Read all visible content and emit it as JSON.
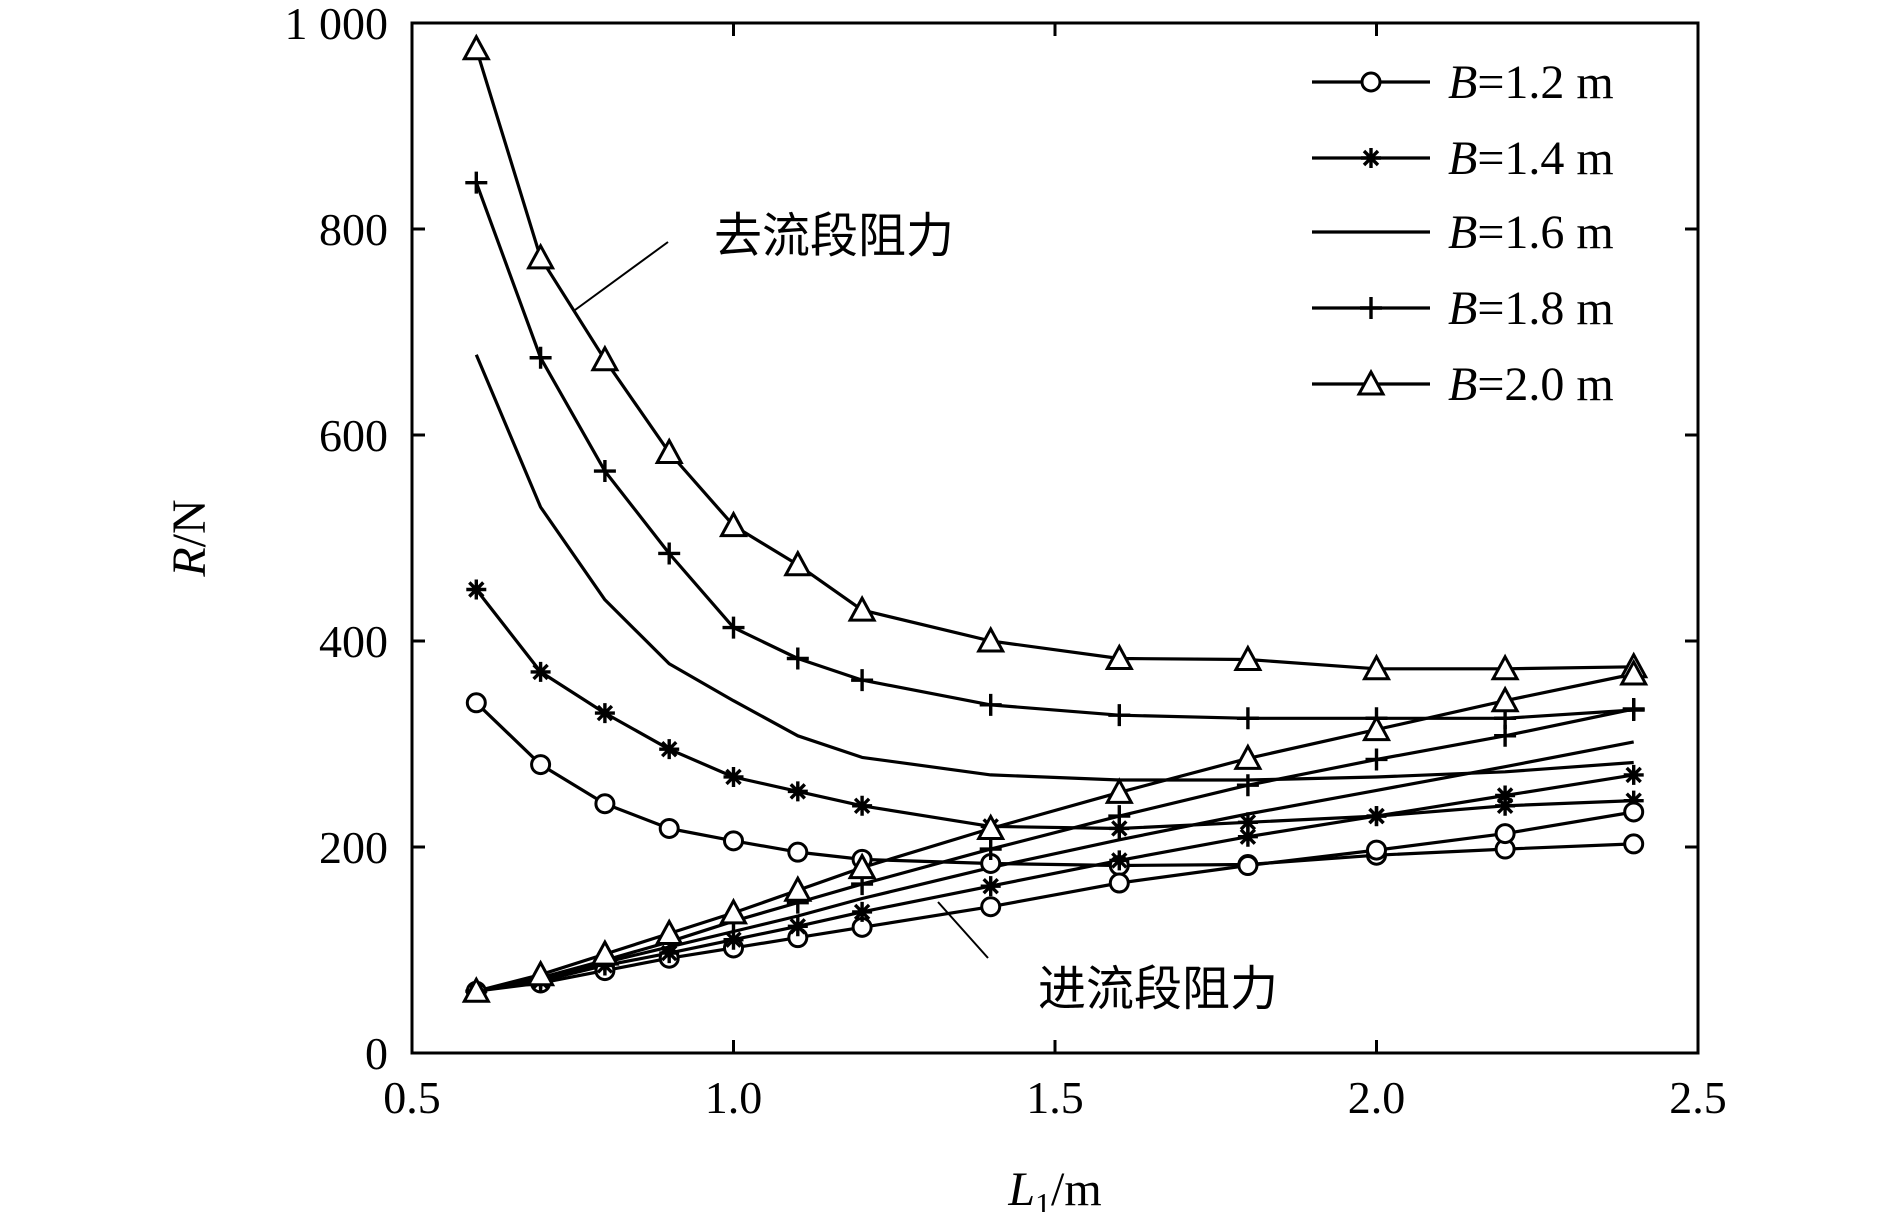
{
  "chart_data": {
    "type": "line",
    "xlabel": {
      "main": "L",
      "sub": "1",
      "unit": "/m"
    },
    "ylabel": {
      "main": "R",
      "unit": "/N"
    },
    "xlim": [
      0.5,
      2.5
    ],
    "ylim": [
      0,
      1000
    ],
    "xticks": [
      {
        "value": 0.5,
        "label": "0.5"
      },
      {
        "value": 1.0,
        "label": "1.0"
      },
      {
        "value": 1.5,
        "label": "1.5"
      },
      {
        "value": 2.0,
        "label": "2.0"
      },
      {
        "value": 2.5,
        "label": "2.5"
      }
    ],
    "yticks": [
      {
        "value": 0,
        "label": "0"
      },
      {
        "value": 200,
        "label": "200"
      },
      {
        "value": 400,
        "label": "400"
      },
      {
        "value": 600,
        "label": "600"
      },
      {
        "value": 800,
        "label": "800"
      },
      {
        "value": 1000,
        "label": "1 000"
      }
    ],
    "grid": false,
    "legend_position": "top-right",
    "legend": [
      {
        "label_italic": "B",
        "label_rest": "=1.2 m",
        "marker": "circle"
      },
      {
        "label_italic": "B",
        "label_rest": "=1.4 m",
        "marker": "star"
      },
      {
        "label_italic": "B",
        "label_rest": "=1.6 m",
        "marker": "none"
      },
      {
        "label_italic": "B",
        "label_rest": "=1.8 m",
        "marker": "plus"
      },
      {
        "label_italic": "B",
        "label_rest": "=2.0 m",
        "marker": "triangle"
      }
    ],
    "annotations": [
      {
        "text": "去流段阻力",
        "position": "upper-middle",
        "points_to": "outflow curves"
      },
      {
        "text": "进流段阻力",
        "position": "lower-middle",
        "points_to": "inflow curves"
      }
    ],
    "x": [
      0.6,
      0.7,
      0.8,
      0.9,
      1.0,
      1.1,
      1.2,
      1.4,
      1.6,
      1.8,
      2.0,
      2.2,
      2.4
    ],
    "series": [
      {
        "name": "B=1.2 m outflow (去流段阻力)",
        "marker": "circle",
        "values": [
          340,
          280,
          242,
          218,
          206,
          195,
          188,
          184,
          182,
          183,
          192,
          198,
          203
        ]
      },
      {
        "name": "B=1.4 m outflow (去流段阻力)",
        "marker": "star",
        "values": [
          450,
          370,
          330,
          295,
          268,
          254,
          240,
          220,
          218,
          224,
          230,
          240,
          245
        ]
      },
      {
        "name": "B=1.6 m outflow (去流段阻力)",
        "marker": "none",
        "values": [
          678,
          530,
          440,
          378,
          342,
          308,
          287,
          270,
          265,
          265,
          268,
          273,
          282
        ]
      },
      {
        "name": "B=1.8 m outflow (去流段阻力)",
        "marker": "plus",
        "values": [
          845,
          675,
          565,
          485,
          413,
          383,
          362,
          338,
          328,
          325,
          325,
          325,
          333
        ]
      },
      {
        "name": "B=2.0 m outflow (去流段阻力)",
        "marker": "triangle",
        "values": [
          975,
          772,
          673,
          583,
          512,
          474,
          430,
          400,
          383,
          382,
          373,
          373,
          375
        ]
      },
      {
        "name": "B=1.2 m inflow (进流段阻力)",
        "marker": "circle",
        "values": [
          60,
          68,
          80,
          92,
          102,
          112,
          122,
          142,
          165,
          182,
          197,
          213,
          234
        ]
      },
      {
        "name": "B=1.4 m inflow (进流段阻力)",
        "marker": "star",
        "values": [
          60,
          70,
          85,
          97,
          110,
          123,
          137,
          162,
          187,
          210,
          230,
          250,
          270
        ]
      },
      {
        "name": "B=1.6 m inflow (进流段阻力)",
        "marker": "none",
        "values": [
          60,
          72,
          88,
          103,
          118,
          133,
          150,
          180,
          207,
          232,
          255,
          278,
          302
        ]
      },
      {
        "name": "B=1.8 m inflow (进流段阻力)",
        "marker": "plus",
        "values": [
          60,
          73,
          90,
          108,
          128,
          146,
          164,
          198,
          230,
          260,
          285,
          308,
          334
        ]
      },
      {
        "name": "B=2.0 m inflow (进流段阻力)",
        "marker": "triangle",
        "values": [
          60,
          76,
          96,
          116,
          136,
          158,
          180,
          218,
          253,
          286,
          314,
          342,
          368
        ]
      }
    ]
  }
}
